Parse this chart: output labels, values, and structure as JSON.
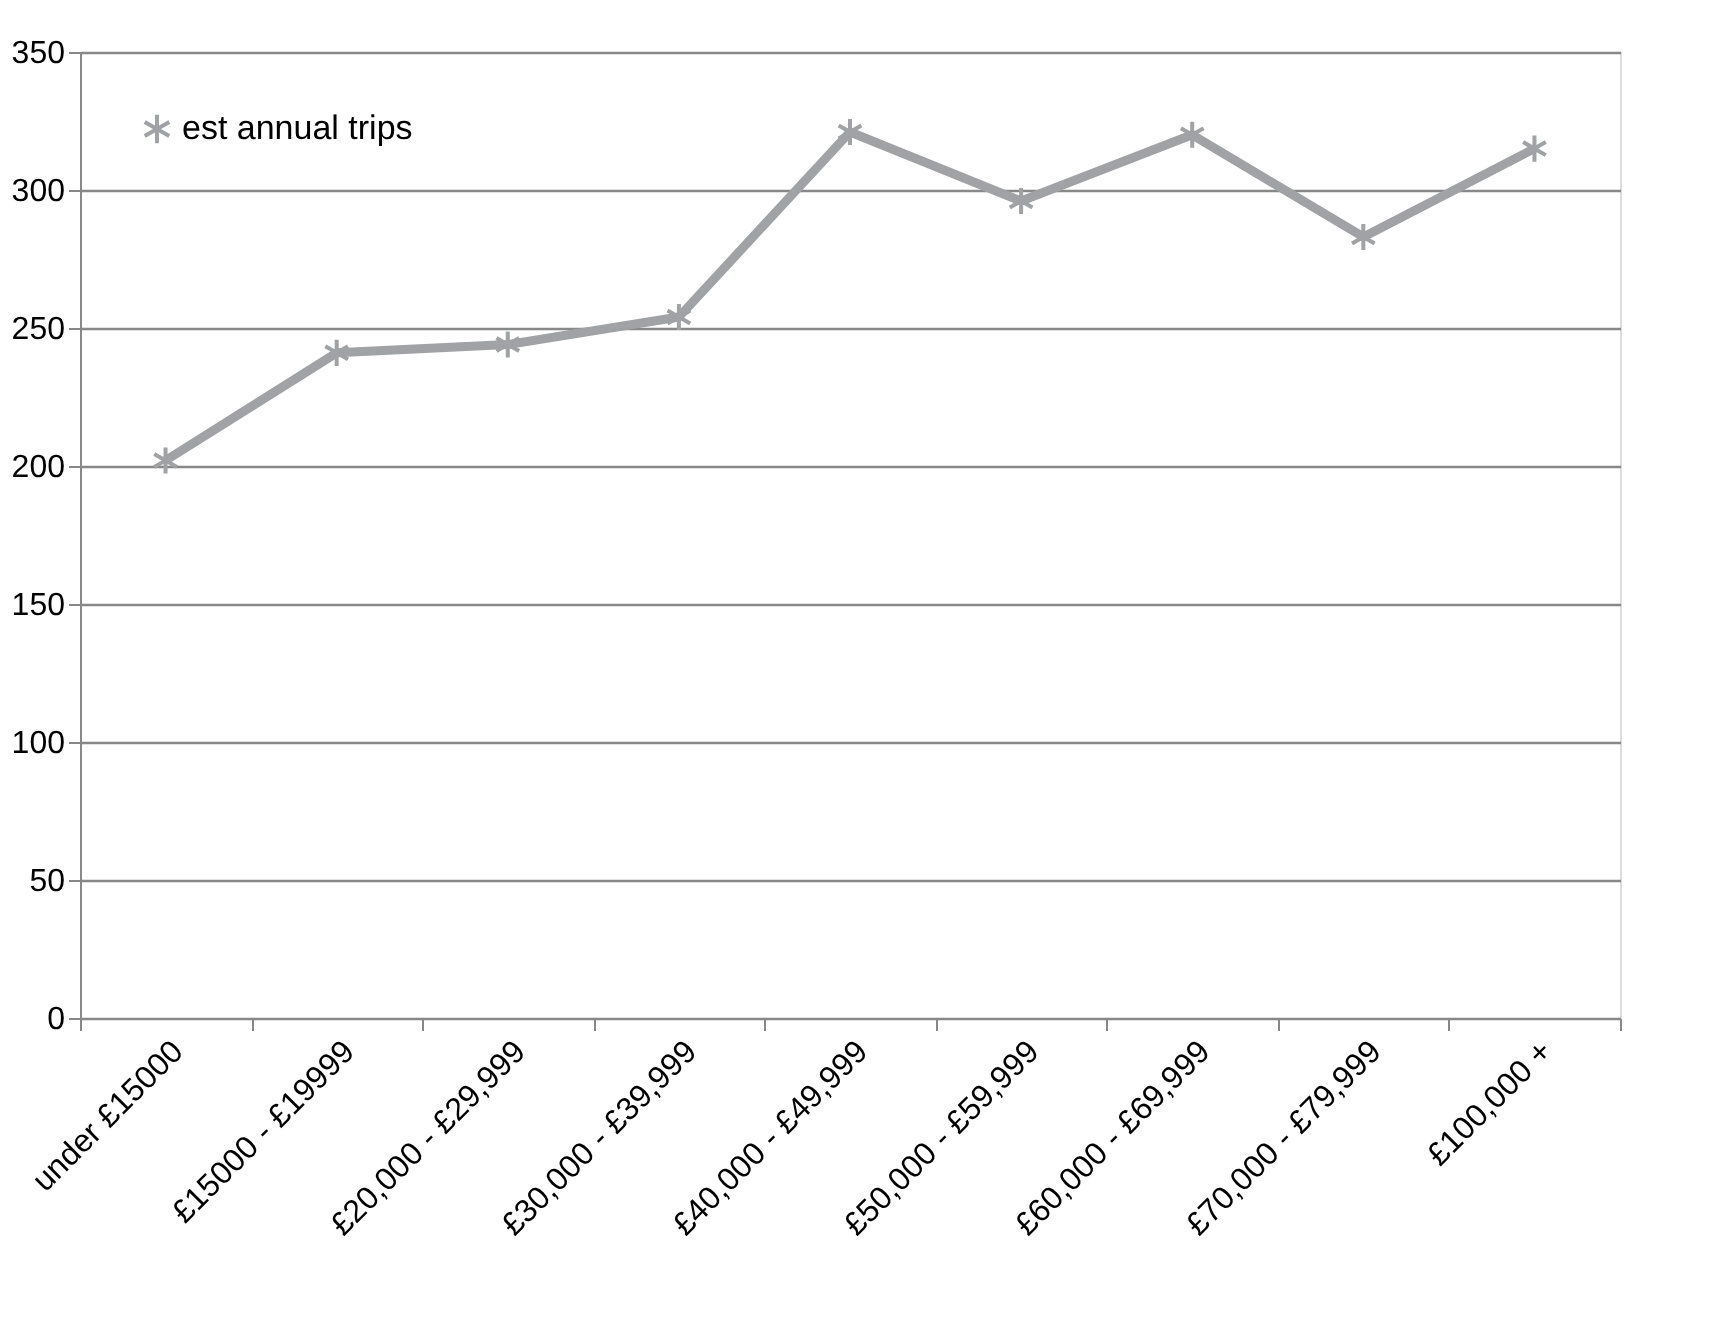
{
  "chart_data": {
    "type": "line",
    "categories": [
      "under £15000",
      "£15000 - £19999",
      "£20,000 - £29,999",
      "£30,000 - £39,999",
      "£40,000 - £49,999",
      "£50,000 - £59,999",
      "£60,000 - £69,999",
      "£70,000 - £79,999",
      "£100,000 +"
    ],
    "series": [
      {
        "name": "est annual trips",
        "color": "#a0a2a5",
        "values": [
          202,
          241,
          244,
          254,
          321,
          296,
          320,
          283,
          315
        ]
      }
    ],
    "ylim": [
      0,
      350
    ],
    "yticks": [
      0,
      50,
      100,
      150,
      200,
      250,
      300,
      350
    ],
    "grid": "y",
    "legend": "top left",
    "marker": "cross",
    "line_style": "solid"
  }
}
